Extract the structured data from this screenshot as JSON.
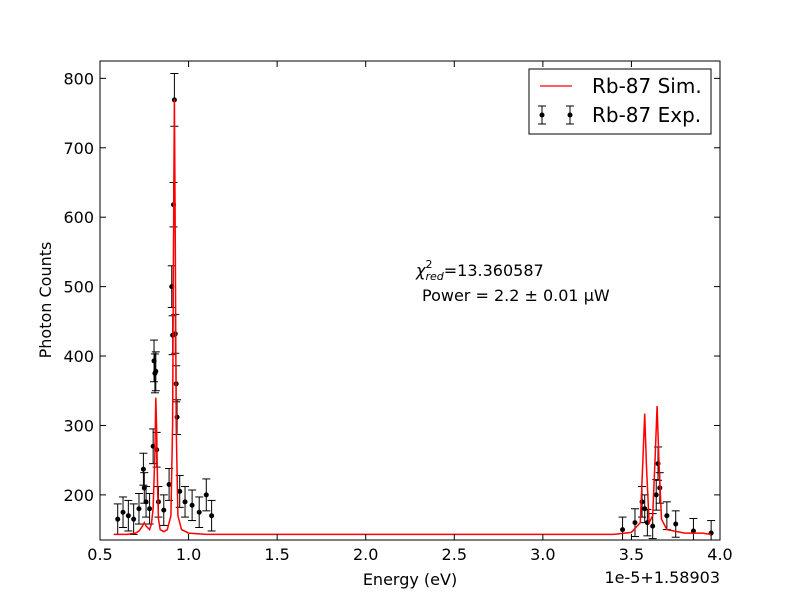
{
  "chart_data": {
    "type": "scatter",
    "xlabel": "Energy (eV)",
    "ylabel": "Photon Counts",
    "x_offset_label": "1e-5+1.58903",
    "xlim": [
      0.5,
      4.0
    ],
    "ylim": [
      135,
      825
    ],
    "xticks": [
      "0.5",
      "1.0",
      "1.5",
      "2.0",
      "2.5",
      "3.0",
      "3.5",
      "4.0"
    ],
    "yticks": [
      "200",
      "300",
      "400",
      "500",
      "600",
      "700",
      "800"
    ],
    "grid": false,
    "legend_position": "top-right",
    "annotations": {
      "chi_label": "χ",
      "chi_sup": "2",
      "chi_sub": "red",
      "chi_value": "=13.360587",
      "power_text": "Power = 2.2 ± 0.01 μW"
    },
    "series": [
      {
        "name": "Rb-87 Sim.",
        "style": "line",
        "color": "#ff0000",
        "x": [
          0.58,
          0.65,
          0.7,
          0.72,
          0.74,
          0.75,
          0.76,
          0.78,
          0.79,
          0.8,
          0.81,
          0.815,
          0.82,
          0.825,
          0.83,
          0.84,
          0.86,
          0.88,
          0.9,
          0.91,
          0.915,
          0.92,
          0.925,
          0.93,
          0.94,
          0.96,
          1.0,
          1.1,
          1.5,
          2.0,
          2.5,
          3.0,
          3.4,
          3.5,
          3.55,
          3.565,
          3.575,
          3.585,
          3.6,
          3.62,
          3.635,
          3.645,
          3.655,
          3.67,
          3.7,
          3.8,
          3.9,
          3.95
        ],
        "y": [
          143,
          143,
          145,
          148,
          155,
          160,
          155,
          150,
          158,
          180,
          260,
          340,
          290,
          210,
          165,
          150,
          147,
          150,
          170,
          300,
          560,
          770,
          560,
          300,
          170,
          150,
          145,
          143,
          143,
          143,
          143,
          143,
          143,
          146,
          160,
          250,
          317,
          240,
          160,
          170,
          260,
          328,
          250,
          165,
          150,
          145,
          145,
          143
        ]
      },
      {
        "name": "Rb-87 Exp.",
        "style": "errorbar",
        "color": "#000000",
        "x": [
          0.6,
          0.63,
          0.66,
          0.69,
          0.72,
          0.745,
          0.75,
          0.76,
          0.78,
          0.8,
          0.805,
          0.81,
          0.815,
          0.82,
          0.83,
          0.86,
          0.89,
          0.905,
          0.91,
          0.915,
          0.92,
          0.925,
          0.93,
          0.935,
          0.95,
          0.98,
          1.02,
          1.06,
          1.1,
          1.13,
          3.45,
          3.52,
          3.56,
          3.575,
          3.59,
          3.62,
          3.64,
          3.65,
          3.66,
          3.7,
          3.75,
          3.85,
          3.95
        ],
        "y": [
          165,
          175,
          170,
          165,
          180,
          237,
          210,
          190,
          180,
          270,
          393,
          375,
          378,
          265,
          190,
          178,
          215,
          500,
          430,
          618,
          769,
          432,
          360,
          312,
          205,
          190,
          185,
          175,
          200,
          170,
          150,
          160,
          190,
          180,
          160,
          155,
          200,
          245,
          210,
          170,
          158,
          148,
          145
        ],
        "err": [
          22,
          22,
          22,
          22,
          22,
          23,
          22,
          22,
          22,
          25,
          30,
          28,
          28,
          25,
          22,
          22,
          23,
          30,
          28,
          32,
          38,
          28,
          26,
          25,
          23,
          22,
          22,
          22,
          23,
          22,
          18,
          20,
          22,
          20,
          19,
          18,
          22,
          24,
          22,
          20,
          19,
          18,
          18
        ]
      }
    ]
  }
}
